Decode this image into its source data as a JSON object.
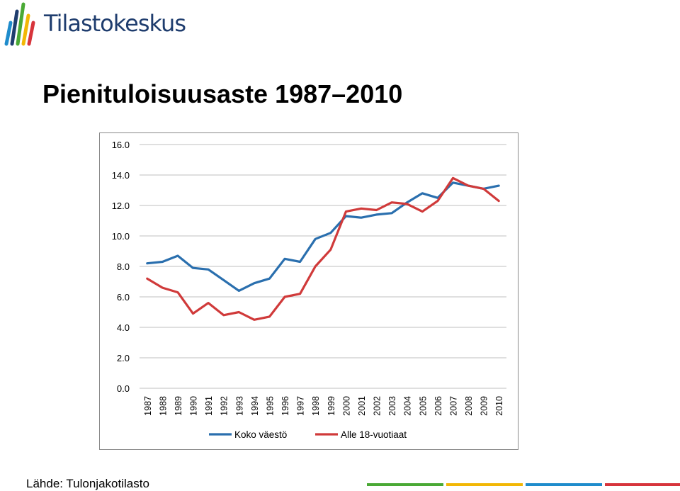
{
  "header": {
    "brand": "Tilastokeskus",
    "logo_icon": "tilastokeskus-bars-logo-icon"
  },
  "page_title": "Pienituloisuusaste 1987–2010",
  "source": "Lähde: Tulonjakotilasto",
  "colors": {
    "brand_green": "#4aa935",
    "brand_yellow": "#f2b705",
    "brand_blue": "#1f8ccc",
    "brand_red": "#d7343b",
    "series_blue": "#2a6fae",
    "series_red": "#d03a3a"
  },
  "chart_data": {
    "type": "line",
    "title": "",
    "xlabel": "",
    "ylabel": "",
    "ylim": [
      0,
      16
    ],
    "y_ticks": [
      "0.0",
      "2.0",
      "4.0",
      "6.0",
      "8.0",
      "10.0",
      "12.0",
      "14.0",
      "16.0"
    ],
    "grid": true,
    "legend_position": "bottom",
    "x": [
      "1987",
      "1988",
      "1989",
      "1990",
      "1991",
      "1992",
      "1993",
      "1994",
      "1995",
      "1996",
      "1997",
      "1998",
      "1999",
      "2000",
      "2001",
      "2002",
      "2003",
      "2004",
      "2005",
      "2006",
      "2007",
      "2008",
      "2009",
      "2010"
    ],
    "series": [
      {
        "name": "Koko väestö",
        "color": "#2a6fae",
        "values": [
          8.2,
          8.3,
          8.7,
          7.9,
          7.8,
          7.1,
          6.4,
          6.9,
          7.2,
          8.5,
          8.3,
          9.8,
          10.2,
          11.3,
          11.2,
          11.4,
          11.5,
          12.2,
          12.8,
          12.5,
          13.5,
          13.3,
          13.1,
          13.3
        ]
      },
      {
        "name": "Alle 18-vuotiaat",
        "color": "#d03a3a",
        "values": [
          7.2,
          6.6,
          6.3,
          4.9,
          5.6,
          4.8,
          5.0,
          4.5,
          4.7,
          6.0,
          6.2,
          8.0,
          9.1,
          11.6,
          11.8,
          11.7,
          12.2,
          12.1,
          11.6,
          12.3,
          13.8,
          13.3,
          13.1,
          12.3
        ]
      }
    ]
  }
}
